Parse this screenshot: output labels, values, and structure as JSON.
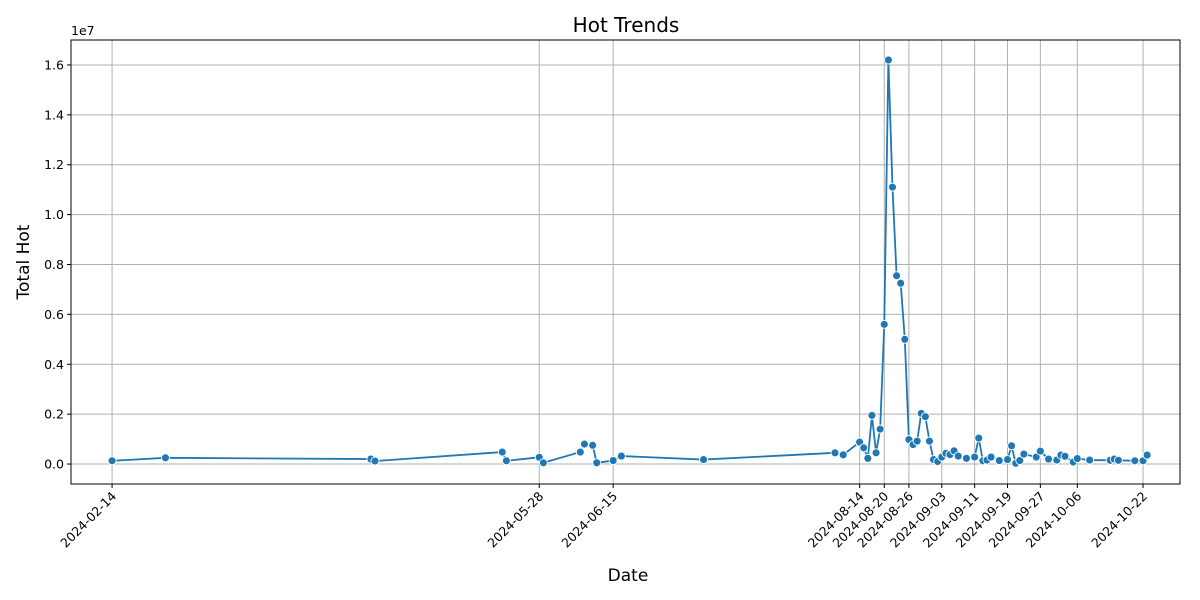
{
  "chart_data": {
    "type": "line",
    "title": "Hot Trends",
    "xlabel": "Date",
    "ylabel": "Total Hot",
    "y_offset_label": "1e7",
    "xlim": [
      "2024-02-04",
      "2024-10-31"
    ],
    "ylim": [
      -800000,
      17000000
    ],
    "grid": true,
    "x_ticks": [
      "2024-02-14",
      "2024-05-28",
      "2024-06-15",
      "2024-08-14",
      "2024-08-20",
      "2024-08-26",
      "2024-09-03",
      "2024-09-11",
      "2024-09-19",
      "2024-09-27",
      "2024-10-06",
      "2024-10-22"
    ],
    "y_ticks": [
      0,
      2000000,
      4000000,
      6000000,
      8000000,
      10000000,
      12000000,
      14000000,
      16000000
    ],
    "y_tick_labels": [
      "0.0",
      "0.2",
      "0.4",
      "0.6",
      "0.8",
      "1.0",
      "1.2",
      "1.4",
      "1.6"
    ],
    "series": [
      {
        "color": "#1f77b4",
        "marker": "circle",
        "points": [
          [
            "2024-02-14",
            130000
          ],
          [
            "2024-02-27",
            250000
          ],
          [
            "2024-04-17",
            200000
          ],
          [
            "2024-04-18",
            120000
          ],
          [
            "2024-05-19",
            480000
          ],
          [
            "2024-05-20",
            130000
          ],
          [
            "2024-05-28",
            270000
          ],
          [
            "2024-05-29",
            50000
          ],
          [
            "2024-06-07",
            480000
          ],
          [
            "2024-06-08",
            800000
          ],
          [
            "2024-06-10",
            750000
          ],
          [
            "2024-06-11",
            50000
          ],
          [
            "2024-06-15",
            140000
          ],
          [
            "2024-06-17",
            320000
          ],
          [
            "2024-07-07",
            180000
          ],
          [
            "2024-08-08",
            450000
          ],
          [
            "2024-08-10",
            370000
          ],
          [
            "2024-08-14",
            880000
          ],
          [
            "2024-08-15",
            650000
          ],
          [
            "2024-08-16",
            230000
          ],
          [
            "2024-08-17",
            1950000
          ],
          [
            "2024-08-18",
            450000
          ],
          [
            "2024-08-19",
            1400000
          ],
          [
            "2024-08-20",
            5600000
          ],
          [
            "2024-08-21",
            16200000
          ],
          [
            "2024-08-22",
            11100000
          ],
          [
            "2024-08-23",
            7550000
          ],
          [
            "2024-08-24",
            7250000
          ],
          [
            "2024-08-25",
            5000000
          ],
          [
            "2024-08-26",
            980000
          ],
          [
            "2024-08-27",
            780000
          ],
          [
            "2024-08-28",
            920000
          ],
          [
            "2024-08-29",
            2030000
          ],
          [
            "2024-08-30",
            1900000
          ],
          [
            "2024-08-31",
            920000
          ],
          [
            "2024-09-01",
            180000
          ],
          [
            "2024-09-02",
            100000
          ],
          [
            "2024-09-03",
            280000
          ],
          [
            "2024-09-04",
            430000
          ],
          [
            "2024-09-05",
            380000
          ],
          [
            "2024-09-06",
            530000
          ],
          [
            "2024-09-07",
            320000
          ],
          [
            "2024-09-09",
            230000
          ],
          [
            "2024-09-11",
            280000
          ],
          [
            "2024-09-12",
            1040000
          ],
          [
            "2024-09-13",
            130000
          ],
          [
            "2024-09-14",
            160000
          ],
          [
            "2024-09-15",
            280000
          ],
          [
            "2024-09-17",
            140000
          ],
          [
            "2024-09-19",
            180000
          ],
          [
            "2024-09-20",
            730000
          ],
          [
            "2024-09-21",
            30000
          ],
          [
            "2024-09-22",
            140000
          ],
          [
            "2024-09-23",
            400000
          ],
          [
            "2024-09-26",
            280000
          ],
          [
            "2024-09-27",
            520000
          ],
          [
            "2024-09-29",
            200000
          ],
          [
            "2024-10-01",
            160000
          ],
          [
            "2024-10-02",
            360000
          ],
          [
            "2024-10-03",
            310000
          ],
          [
            "2024-10-05",
            80000
          ],
          [
            "2024-10-06",
            220000
          ],
          [
            "2024-10-09",
            160000
          ],
          [
            "2024-10-14",
            150000
          ],
          [
            "2024-10-15",
            200000
          ],
          [
            "2024-10-16",
            150000
          ],
          [
            "2024-10-20",
            130000
          ],
          [
            "2024-10-22",
            130000
          ],
          [
            "2024-10-23",
            360000
          ]
        ]
      }
    ]
  }
}
